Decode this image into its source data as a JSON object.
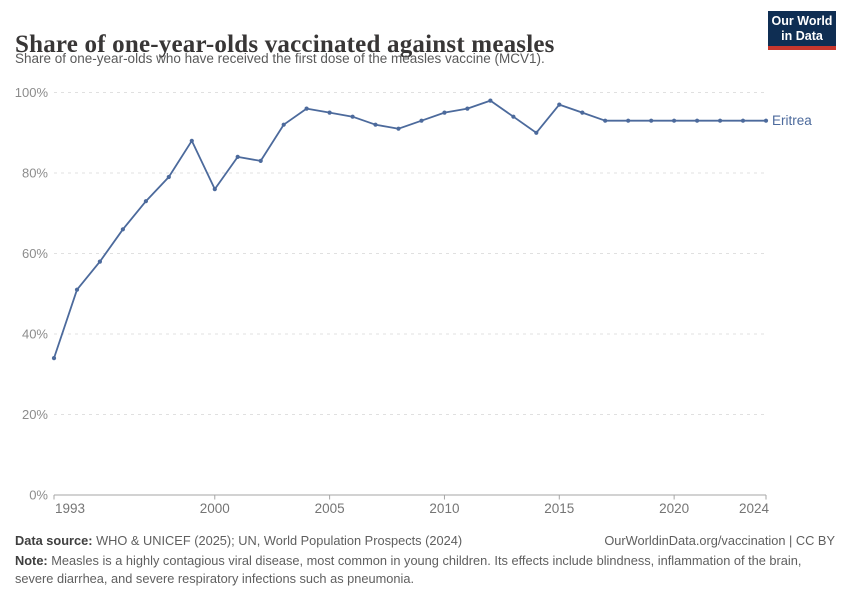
{
  "header": {
    "title": "Share of one-year-olds vaccinated against measles",
    "subtitle": "Share of one-year-olds who have received the first dose of the measles vaccine (MCV1)."
  },
  "logo": {
    "line1": "Our World",
    "line2": "in Data",
    "bg_color": "#0f2e53",
    "accent_color": "#c8372d"
  },
  "chart_data": {
    "type": "line",
    "title": "Share of one-year-olds vaccinated against measles",
    "xlabel": "",
    "ylabel": "",
    "x_range": [
      1993,
      2024
    ],
    "ylim": [
      0,
      100
    ],
    "grid": "horizontal-dashed",
    "legend_position": "end-of-line-label",
    "x_ticks": [
      {
        "year": 1993,
        "label": "1993",
        "align": "start"
      },
      {
        "year": 2000,
        "label": "2000",
        "align": "middle"
      },
      {
        "year": 2005,
        "label": "2005",
        "align": "middle"
      },
      {
        "year": 2010,
        "label": "2010",
        "align": "middle"
      },
      {
        "year": 2015,
        "label": "2015",
        "align": "middle"
      },
      {
        "year": 2020,
        "label": "2020",
        "align": "middle"
      },
      {
        "year": 2024,
        "label": "2024",
        "align": "end"
      }
    ],
    "y_ticks": [
      {
        "value": 0,
        "label": "0%"
      },
      {
        "value": 20,
        "label": "20%"
      },
      {
        "value": 40,
        "label": "40%"
      },
      {
        "value": 60,
        "label": "60%"
      },
      {
        "value": 80,
        "label": "80%"
      },
      {
        "value": 100,
        "label": "100%"
      }
    ],
    "series": [
      {
        "name": "Eritrea",
        "color": "#4c6a9c",
        "x": [
          1993,
          1994,
          1995,
          1996,
          1997,
          1998,
          1999,
          2000,
          2001,
          2002,
          2003,
          2004,
          2005,
          2006,
          2007,
          2008,
          2009,
          2010,
          2011,
          2012,
          2013,
          2014,
          2015,
          2016,
          2017,
          2018,
          2019,
          2020,
          2021,
          2022,
          2023,
          2024
        ],
        "values": [
          34,
          51,
          58,
          66,
          73,
          79,
          88,
          76,
          84,
          83,
          92,
          96,
          95,
          94,
          92,
          91,
          93,
          95,
          96,
          98,
          94,
          90,
          97,
          95,
          93,
          93,
          93,
          93,
          93,
          93,
          93,
          93
        ]
      }
    ]
  },
  "footer": {
    "source_label": "Data source:",
    "source_text": " WHO & UNICEF (2025); UN, World Population Prospects (2024)",
    "rights": "OurWorldinData.org/vaccination | CC BY",
    "note_label": "Note:",
    "note_text": " Measles is a highly contagious viral disease, most common in young children. Its effects include blindness, inflammation of the brain, severe diarrhea, and severe respiratory infections such as pneumonia."
  }
}
